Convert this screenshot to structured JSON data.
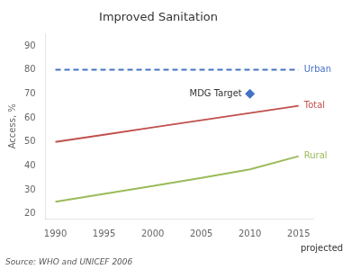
{
  "chart_data": {
    "type": "line",
    "title": "Improved Sanitation",
    "ylabel": "Access, %",
    "x": [
      1990,
      1995,
      2000,
      2005,
      2010,
      2015
    ],
    "series": [
      {
        "name": "Urban",
        "color": "#4472C4",
        "values": [
          80,
          80,
          80,
          80,
          80,
          80
        ],
        "line_style": "dashed"
      },
      {
        "name": "Total",
        "color": "#C0504D",
        "values": [
          50,
          53.0,
          56.0,
          59.0,
          62.0,
          65.0
        ],
        "line_style": "solid"
      },
      {
        "name": "Rural",
        "color": "#9BBB59",
        "values": [
          25,
          28.3,
          31.6,
          35.0,
          38.5,
          44.0
        ],
        "line_style": "solid"
      }
    ],
    "xlim": [
      1989,
      2016.5
    ],
    "xticks": [
      1990,
      1995,
      2000,
      2005,
      2010,
      2015
    ],
    "ylim": [
      18,
      95
    ],
    "yticks": [
      20,
      30,
      40,
      50,
      60,
      70,
      80,
      90
    ],
    "grid": false,
    "annotations": [
      {
        "text": "MDG Target",
        "x": 2010,
        "y": 70,
        "marker": "diamond",
        "color": "#4472C4"
      },
      {
        "text": "projected",
        "x": 2015.2
      }
    ],
    "source": "Source: WHO and UNICEF 2006"
  }
}
